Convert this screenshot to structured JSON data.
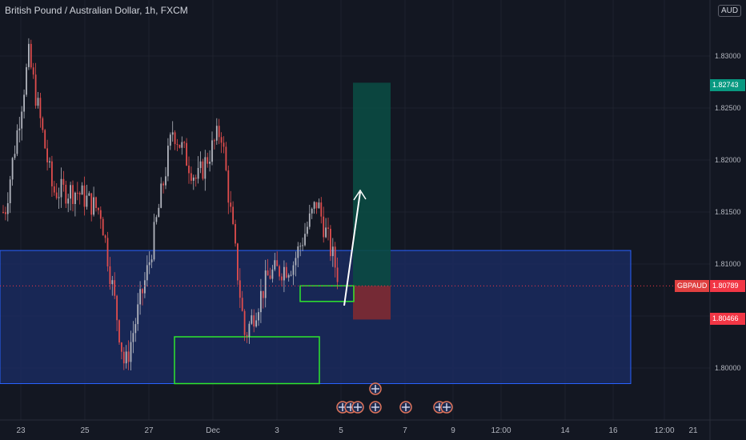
{
  "header": {
    "title": "British Pound / Australian Dollar, 1h, FXCM",
    "currency_badge": "AUD"
  },
  "price_labels": {
    "target": "1.82743",
    "current_symbol": "GBPAUD",
    "current": "1.80789",
    "stop": "1.80466"
  },
  "colors": {
    "background": "#131722",
    "grid": "#1e222d",
    "axis_text": "#b2b5be",
    "bull_candle": "#b2b5be",
    "bear_candle": "#e04d4d",
    "zone_fill": "#1a2c63",
    "zone_border": "#2962ff",
    "highlight_box": "#2ee62e",
    "target_box": "#0b4a43",
    "stop_box": "#7a2a34",
    "price_line": "#f23645",
    "target_label": "#089981",
    "stop_label": "#f23645"
  },
  "chart_data": {
    "type": "candlestick",
    "title": "British Pound / Australian Dollar, 1h, FXCM",
    "x_tick_labels": [
      "23",
      "25",
      "27",
      "Dec",
      "3",
      "5",
      "7",
      "9",
      "12:00",
      "14",
      "16",
      "12:00",
      "21"
    ],
    "y_tick_labels": [
      "1.83000",
      "1.82500",
      "1.82000",
      "1.81500",
      "1.81000",
      "1.80500",
      "1.80000"
    ],
    "ylim": [
      1.7965,
      1.8345
    ],
    "grid": true,
    "series": [
      {
        "name": "close",
        "anchors": [
          [
            "23",
            1.815
          ],
          [
            "24",
            1.83
          ],
          [
            "25",
            1.817
          ],
          [
            "26",
            1.817
          ],
          [
            "27",
            1.815
          ],
          [
            "28",
            1.8
          ],
          [
            "29",
            1.81
          ],
          [
            "30",
            1.823
          ],
          [
            "Dec",
            1.818
          ],
          [
            "2",
            1.823
          ],
          [
            "3",
            1.803
          ],
          [
            "4",
            1.809
          ],
          [
            "5",
            1.81
          ],
          [
            "6",
            1.816
          ],
          [
            "7",
            1.8079
          ]
        ]
      }
    ],
    "annotations": {
      "demand_zone": [
        1.7985,
        1.8113
      ],
      "box_lower": [
        1.7985,
        1.803
      ],
      "box_entry": [
        1.8064,
        1.8079
      ],
      "long_position": {
        "entry": 1.80789,
        "target": 1.82743,
        "stop": 1.80466
      }
    }
  }
}
